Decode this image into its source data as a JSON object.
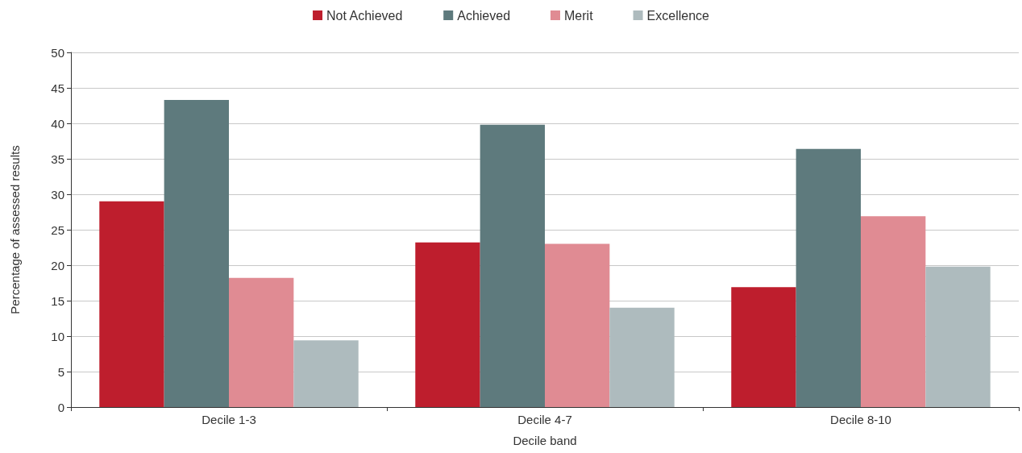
{
  "chart_data": {
    "type": "bar",
    "xlabel": "Decile band",
    "ylabel": "Percentage of assessed results",
    "categories": [
      "Decile 1-3",
      "Decile 4-7",
      "Decile 8-10"
    ],
    "series": [
      {
        "name": "Not Achieved",
        "color": "#be1e2d",
        "values": [
          29.0,
          23.2,
          16.9
        ]
      },
      {
        "name": "Achieved",
        "color": "#5e7a7d",
        "values": [
          43.3,
          39.8,
          36.4
        ]
      },
      {
        "name": "Merit",
        "color": "#e08b93",
        "values": [
          18.2,
          23.0,
          26.9
        ]
      },
      {
        "name": "Excellence",
        "color": "#aebbbe",
        "values": [
          9.4,
          14.0,
          19.8
        ]
      }
    ],
    "ylim": [
      0,
      50
    ],
    "yticks": [
      0,
      5,
      10,
      15,
      20,
      25,
      30,
      35,
      40,
      45,
      50
    ],
    "grid": "y",
    "legend": "top"
  }
}
